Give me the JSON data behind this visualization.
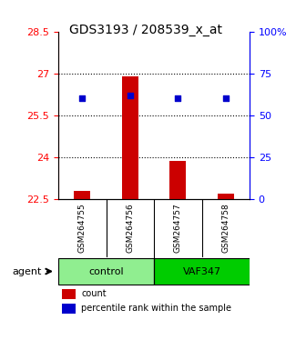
{
  "title": "GDS3193 / 208539_x_at",
  "samples": [
    "GSM264755",
    "GSM264756",
    "GSM264757",
    "GSM264758"
  ],
  "count_values": [
    22.8,
    26.9,
    23.85,
    22.7
  ],
  "percentile_values": [
    26.1,
    26.2,
    26.1,
    26.1
  ],
  "ylim": [
    22.5,
    28.5
  ],
  "yticks_left": [
    22.5,
    24,
    25.5,
    27,
    28.5
  ],
  "yticks_right": [
    0,
    25,
    50,
    75,
    100
  ],
  "ytick_right_labels": [
    "0",
    "25",
    "50",
    "75",
    "100%"
  ],
  "groups": [
    {
      "label": "control",
      "samples": [
        0,
        1
      ],
      "color": "#90EE90"
    },
    {
      "label": "VAF347",
      "samples": [
        2,
        3
      ],
      "color": "#00CC00"
    }
  ],
  "bar_color": "#CC0000",
  "dot_color": "#0000CC",
  "bar_width": 0.35,
  "group_label": "agent",
  "legend_count_label": "count",
  "legend_pct_label": "percentile rank within the sample",
  "background_color": "#ffffff",
  "plot_bg_color": "#ffffff",
  "grid_color": "#000000",
  "sample_box_color": "#cccccc"
}
